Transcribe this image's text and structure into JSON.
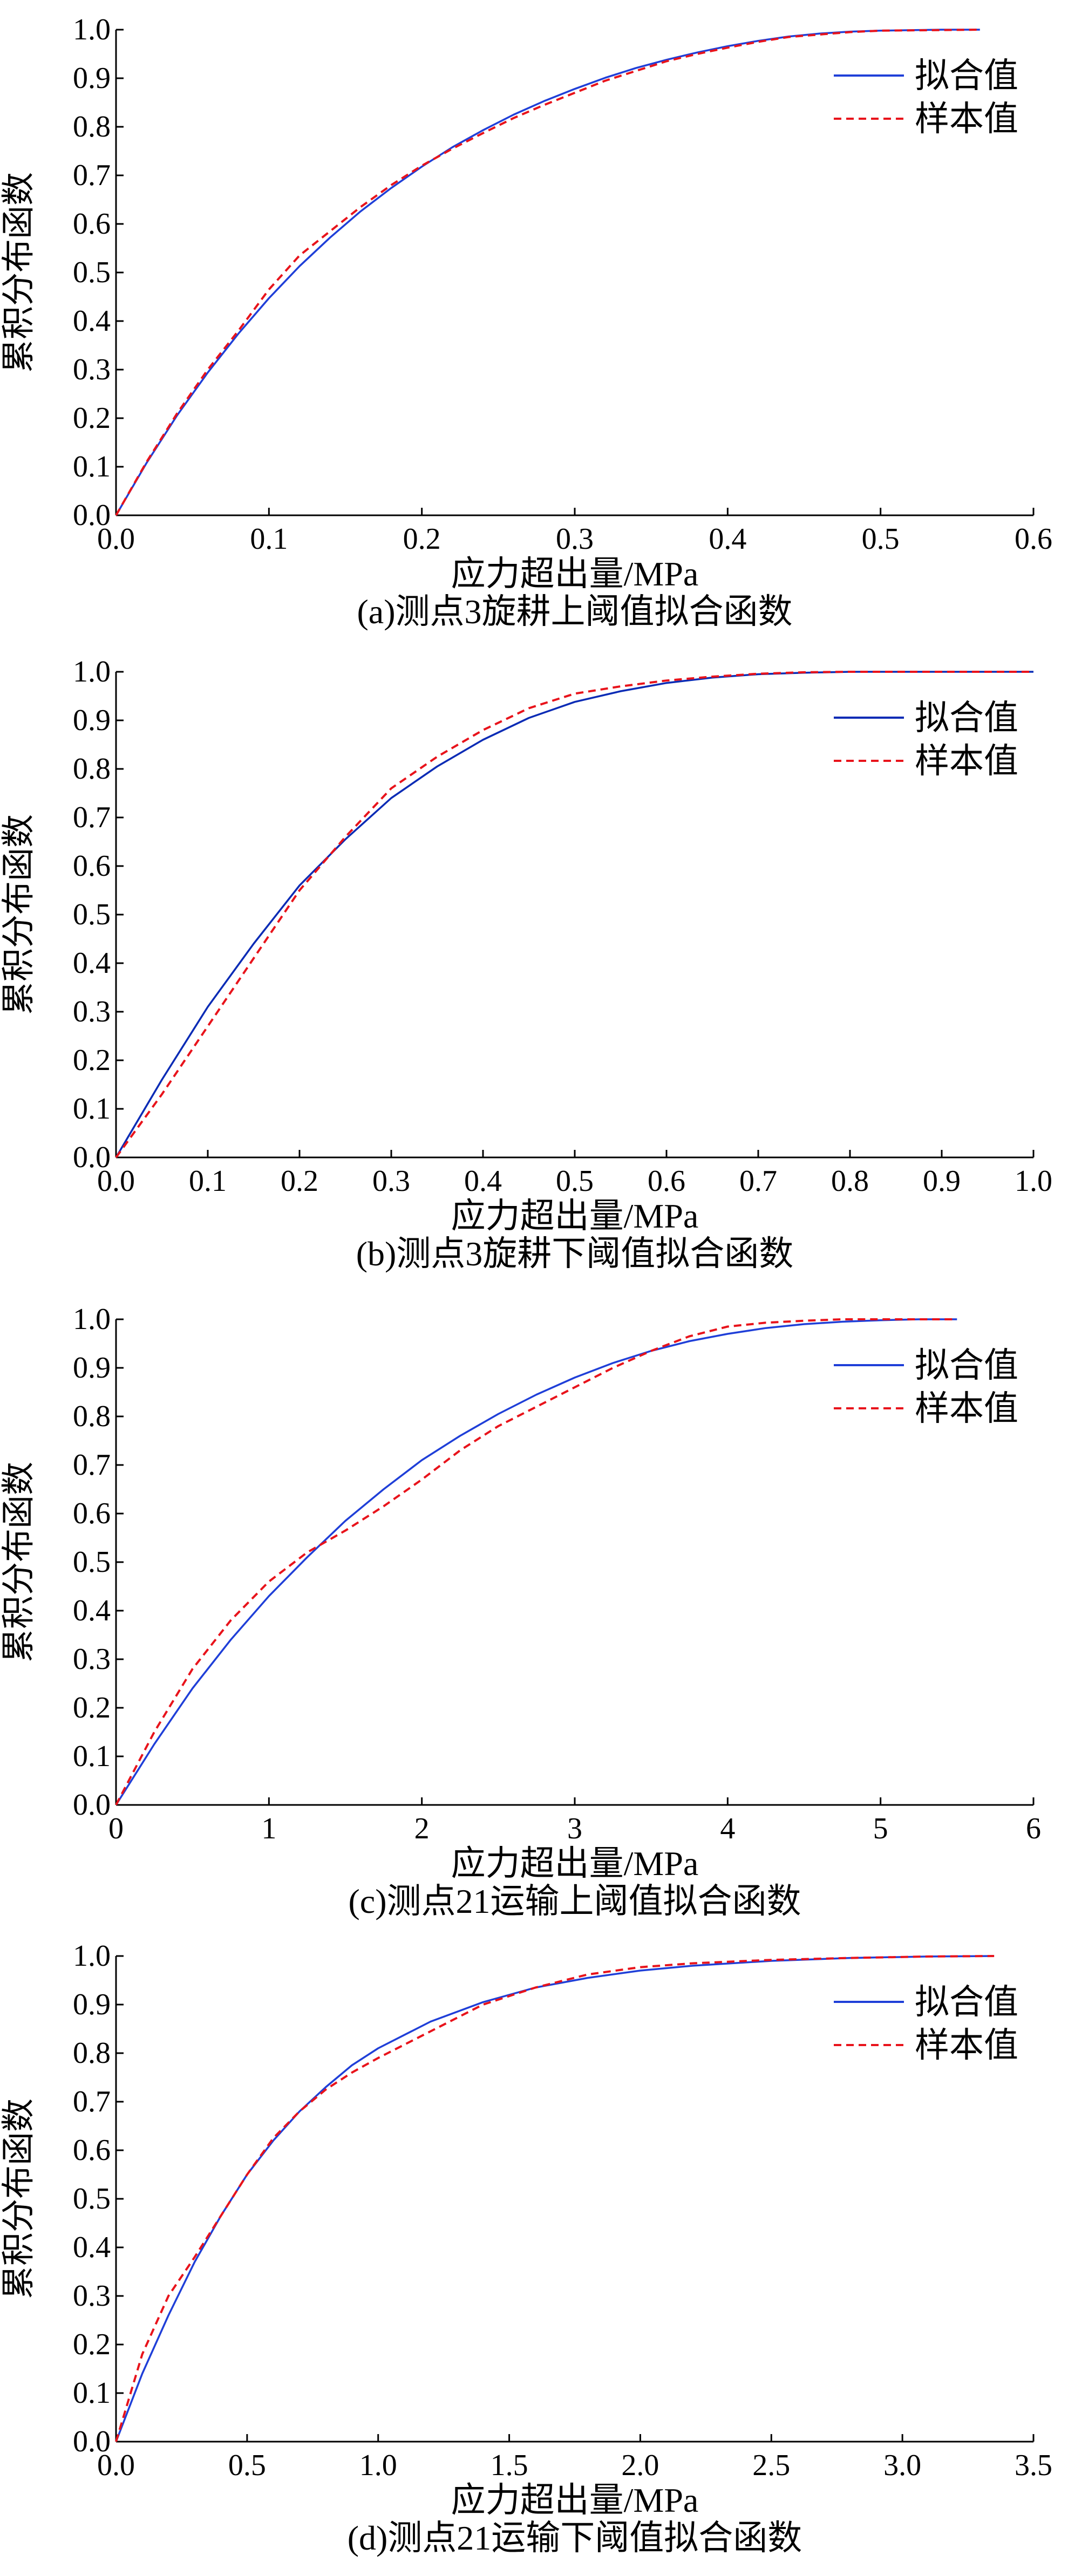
{
  "chart_data": [
    {
      "type": "line",
      "caption": "(a)测点3旋耕上阈值拟合函数",
      "xlabel": "应力超出量/MPa",
      "ylabel": "累积分布函数",
      "xlim": [
        0,
        0.6
      ],
      "ylim": [
        0,
        1.0
      ],
      "x_ticks": [
        "0.0",
        "0.1",
        "0.2",
        "0.3",
        "0.4",
        "0.5",
        "0.6"
      ],
      "y_ticks": [
        "0.0",
        "0.1",
        "0.2",
        "0.3",
        "0.4",
        "0.5",
        "0.6",
        "0.7",
        "0.8",
        "0.9",
        "1.0"
      ],
      "legend_position": "top-right",
      "series": [
        {
          "name": "拟合值",
          "color": "#1f3fd8",
          "dash": "solid",
          "x": [
            0,
            0.02,
            0.04,
            0.06,
            0.08,
            0.1,
            0.12,
            0.14,
            0.16,
            0.18,
            0.2,
            0.22,
            0.24,
            0.26,
            0.28,
            0.3,
            0.32,
            0.34,
            0.36,
            0.38,
            0.4,
            0.42,
            0.44,
            0.46,
            0.48,
            0.5,
            0.52,
            0.54,
            0.565
          ],
          "y": [
            0.0,
            0.108,
            0.206,
            0.294,
            0.374,
            0.447,
            0.513,
            0.572,
            0.626,
            0.674,
            0.718,
            0.758,
            0.793,
            0.825,
            0.853,
            0.878,
            0.901,
            0.921,
            0.938,
            0.953,
            0.966,
            0.977,
            0.986,
            0.992,
            0.996,
            0.998,
            0.999,
            1.0,
            1.0
          ]
        },
        {
          "name": "样本值",
          "color": "#e8131b",
          "dash": "dashed",
          "x": [
            0,
            0.02,
            0.04,
            0.06,
            0.08,
            0.1,
            0.12,
            0.14,
            0.16,
            0.18,
            0.2,
            0.22,
            0.24,
            0.26,
            0.28,
            0.3,
            0.32,
            0.34,
            0.36,
            0.38,
            0.4,
            0.42,
            0.44,
            0.46,
            0.48,
            0.5,
            0.565
          ],
          "y": [
            0.0,
            0.11,
            0.21,
            0.3,
            0.38,
            0.465,
            0.535,
            0.585,
            0.635,
            0.68,
            0.72,
            0.755,
            0.787,
            0.818,
            0.845,
            0.87,
            0.895,
            0.915,
            0.935,
            0.95,
            0.963,
            0.975,
            0.985,
            0.99,
            0.995,
            0.998,
            1.0
          ]
        }
      ]
    },
    {
      "type": "line",
      "caption": "(b)测点3旋耕下阈值拟合函数",
      "xlabel": "应力超出量/MPa",
      "ylabel": "累积分布函数",
      "xlim": [
        0,
        1.0
      ],
      "ylim": [
        0,
        1.0
      ],
      "x_ticks": [
        "0.0",
        "0.1",
        "0.2",
        "0.3",
        "0.4",
        "0.5",
        "0.6",
        "0.7",
        "0.8",
        "0.9",
        "1.0"
      ],
      "y_ticks": [
        "0.0",
        "0.1",
        "0.2",
        "0.3",
        "0.4",
        "0.5",
        "0.6",
        "0.7",
        "0.8",
        "0.9",
        "1.0"
      ],
      "legend_position": "top-right",
      "series": [
        {
          "name": "拟合值",
          "color": "#0a2bb5",
          "dash": "solid",
          "x": [
            0,
            0.05,
            0.1,
            0.15,
            0.2,
            0.25,
            0.3,
            0.35,
            0.4,
            0.45,
            0.5,
            0.55,
            0.6,
            0.65,
            0.7,
            0.75,
            0.8,
            0.85,
            0.9,
            0.95,
            1.0
          ],
          "y": [
            0.0,
            0.16,
            0.31,
            0.44,
            0.56,
            0.655,
            0.74,
            0.805,
            0.86,
            0.905,
            0.938,
            0.96,
            0.977,
            0.988,
            0.995,
            0.998,
            1.0,
            1.0,
            1.0,
            1.0,
            1.0
          ]
        },
        {
          "name": "样本值",
          "color": "#e8131b",
          "dash": "dashed",
          "x": [
            0,
            0.05,
            0.1,
            0.15,
            0.2,
            0.25,
            0.3,
            0.35,
            0.4,
            0.45,
            0.5,
            0.55,
            0.6,
            0.65,
            0.7,
            0.75,
            0.8,
            0.85,
            0.9,
            0.95,
            1.0
          ],
          "y": [
            0.0,
            0.13,
            0.27,
            0.41,
            0.55,
            0.66,
            0.76,
            0.825,
            0.88,
            0.925,
            0.955,
            0.97,
            0.982,
            0.99,
            0.996,
            0.999,
            1.0,
            1.0,
            1.0,
            1.0,
            1.0
          ]
        }
      ]
    },
    {
      "type": "line",
      "caption": "(c)测点21运输上阈值拟合函数",
      "xlabel": "应力超出量/MPa",
      "ylabel": "累积分布函数",
      "xlim": [
        0,
        6
      ],
      "ylim": [
        0,
        1.0
      ],
      "x_ticks": [
        "0",
        "1",
        "2",
        "3",
        "4",
        "5",
        "6"
      ],
      "y_ticks": [
        "0.0",
        "0.1",
        "0.2",
        "0.3",
        "0.4",
        "0.5",
        "0.6",
        "0.7",
        "0.8",
        "0.9",
        "1.0"
      ],
      "legend_position": "top-right",
      "series": [
        {
          "name": "拟合值",
          "color": "#1f3fd8",
          "dash": "solid",
          "x": [
            0,
            0.25,
            0.5,
            0.75,
            1.0,
            1.25,
            1.5,
            1.75,
            2.0,
            2.25,
            2.5,
            2.75,
            3.0,
            3.25,
            3.5,
            3.75,
            4.0,
            4.25,
            4.5,
            4.75,
            5.0,
            5.25,
            5.5
          ],
          "y": [
            0.0,
            0.125,
            0.24,
            0.34,
            0.43,
            0.51,
            0.585,
            0.65,
            0.71,
            0.76,
            0.805,
            0.845,
            0.88,
            0.91,
            0.935,
            0.955,
            0.97,
            0.982,
            0.99,
            0.995,
            0.998,
            1.0,
            1.0
          ]
        },
        {
          "name": "样本值",
          "color": "#e8131b",
          "dash": "dashed",
          "x": [
            0,
            0.25,
            0.5,
            0.75,
            1.0,
            1.25,
            1.5,
            1.75,
            2.0,
            2.25,
            2.5,
            2.75,
            3.0,
            3.25,
            3.5,
            3.75,
            4.0,
            4.25,
            4.5,
            4.75,
            5.0,
            5.25,
            5.5
          ],
          "y": [
            0.0,
            0.15,
            0.28,
            0.38,
            0.46,
            0.52,
            0.565,
            0.615,
            0.67,
            0.73,
            0.78,
            0.82,
            0.86,
            0.9,
            0.935,
            0.965,
            0.985,
            0.993,
            0.997,
            1.0,
            1.0,
            1.0,
            1.0
          ]
        }
      ]
    },
    {
      "type": "line",
      "caption": "(d)测点21运输下阈值拟合函数",
      "xlabel": "应力超出量/MPa",
      "ylabel": "累积分布函数",
      "xlim": [
        0,
        3.5
      ],
      "ylim": [
        0,
        1.0
      ],
      "x_ticks": [
        "0.0",
        "0.5",
        "1.0",
        "1.5",
        "2.0",
        "2.5",
        "3.0",
        "3.5"
      ],
      "y_ticks": [
        "0.0",
        "0.1",
        "0.2",
        "0.3",
        "0.4",
        "0.5",
        "0.6",
        "0.7",
        "0.8",
        "0.9",
        "1.0"
      ],
      "legend_position": "top-right",
      "series": [
        {
          "name": "拟合值",
          "color": "#1f3fd8",
          "dash": "solid",
          "x": [
            0,
            0.1,
            0.2,
            0.3,
            0.4,
            0.5,
            0.6,
            0.7,
            0.8,
            0.9,
            1.0,
            1.2,
            1.4,
            1.6,
            1.8,
            2.0,
            2.2,
            2.5,
            2.8,
            3.1,
            3.35
          ],
          "y": [
            0.0,
            0.14,
            0.26,
            0.37,
            0.465,
            0.55,
            0.62,
            0.68,
            0.73,
            0.775,
            0.81,
            0.865,
            0.905,
            0.935,
            0.955,
            0.97,
            0.98,
            0.99,
            0.996,
            0.999,
            1.0
          ]
        },
        {
          "name": "样本值",
          "color": "#e8131b",
          "dash": "dashed",
          "x": [
            0,
            0.1,
            0.2,
            0.3,
            0.4,
            0.5,
            0.6,
            0.7,
            0.8,
            0.9,
            1.0,
            1.2,
            1.4,
            1.6,
            1.8,
            2.0,
            2.2,
            2.5,
            2.8,
            3.1,
            3.35
          ],
          "y": [
            0.0,
            0.18,
            0.3,
            0.38,
            0.465,
            0.55,
            0.625,
            0.68,
            0.725,
            0.76,
            0.79,
            0.845,
            0.9,
            0.935,
            0.962,
            0.977,
            0.985,
            0.992,
            0.996,
            0.999,
            1.0
          ]
        }
      ]
    }
  ]
}
